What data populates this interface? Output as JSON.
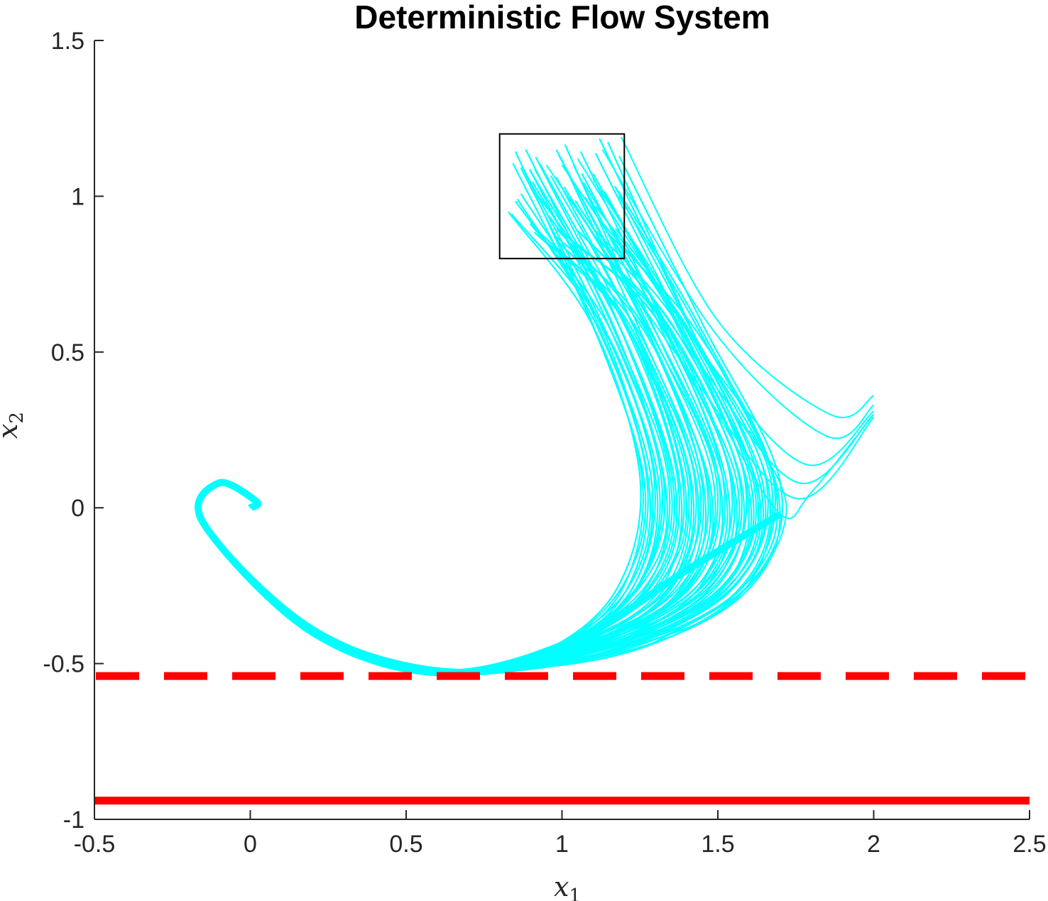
{
  "chart_data": {
    "type": "line",
    "title": "Deterministic Flow System",
    "xlabel": {
      "symbol": "x",
      "subscript": "1"
    },
    "ylabel": {
      "symbol": "x",
      "subscript": "2"
    },
    "xlim": [
      -0.5,
      2.5
    ],
    "ylim": [
      -1,
      1.5
    ],
    "xticks": [
      "-0.5",
      "0",
      "0.5",
      "1",
      "1.5",
      "2",
      "2.5"
    ],
    "yticks": [
      "-1",
      "-0.5",
      "0",
      "0.5",
      "1",
      "1.5"
    ],
    "grid": false,
    "legend": "none",
    "initial_set_box": {
      "x": [
        0.8,
        1.2
      ],
      "y": [
        0.8,
        1.2
      ]
    },
    "constraints": [
      {
        "style": "dashed",
        "color": "#ff0000",
        "y": -0.54
      },
      {
        "style": "solid",
        "color": "#ff0000",
        "y": -0.94
      }
    ],
    "trajectory_color": "#00ffff",
    "trajectory_count": 60,
    "trajectory_end": [
      0.0,
      0.0
    ],
    "trajectory_waypoints": [
      {
        "x": [
          1.19,
          1.5,
          1.86,
          2.0
        ],
        "y": [
          1.19,
          0.6,
          0.3,
          0.36
        ]
      },
      {
        "x": [
          1.0,
          1.45,
          1.7,
          1.6,
          1.2,
          0.7,
          0.2,
          -0.15,
          -0.1,
          0.0
        ],
        "y": [
          1.15,
          0.55,
          0.0,
          -0.3,
          -0.48,
          -0.53,
          -0.4,
          -0.05,
          0.08,
          0.0
        ]
      }
    ]
  }
}
